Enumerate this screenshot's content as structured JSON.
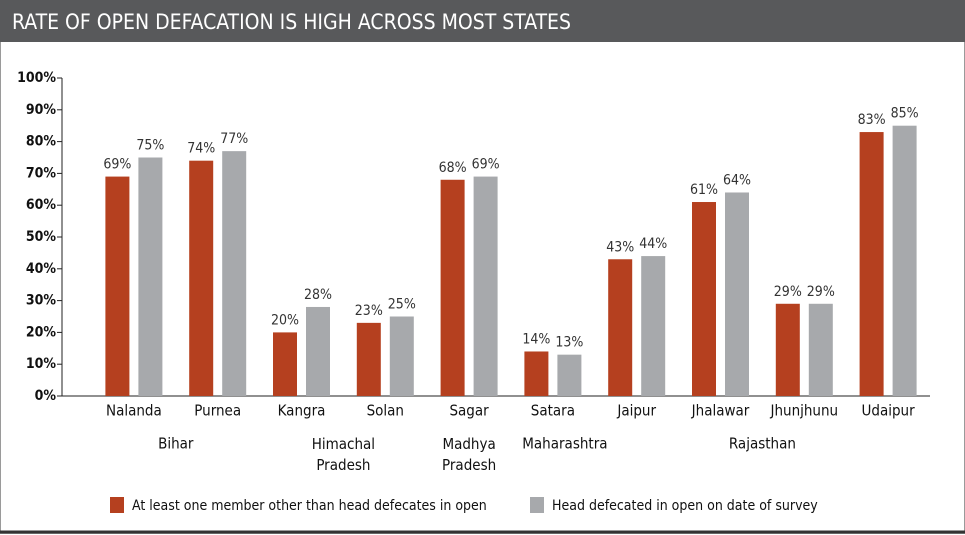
{
  "chart_data": {
    "type": "bar",
    "title": "RATE OF OPEN DEFACATION IS HIGH ACROSS MOST STATES",
    "categories": [
      "Nalanda",
      "Purnea",
      "Kangra",
      "Solan",
      "Sagar",
      "Satara",
      "Jaipur",
      "Jhalawar",
      "Jhunjhunu",
      "Udaipur"
    ],
    "groups": [
      "Bihar",
      "Himachal Pradesh",
      "Madhya Pradesh",
      "Maharashtra",
      "Rajasthan"
    ],
    "series": [
      {
        "name": "At least one member other than head defecates in open",
        "color": "#b5401f",
        "values": [
          69,
          74,
          20,
          23,
          68,
          14,
          43,
          61,
          29,
          83
        ],
        "value_labels": [
          "69%",
          "74%",
          "20%",
          "23%",
          "68%",
          "14%",
          "43%",
          "61%",
          "29%",
          "83%"
        ]
      },
      {
        "name": "Head defecated in open on date of survey",
        "color": "#a7a9ac",
        "values": [
          75,
          77,
          28,
          25,
          69,
          13,
          44,
          64,
          29,
          85
        ],
        "value_labels": [
          "75%",
          "77%",
          "28%",
          "25%",
          "69%",
          "13%",
          "44%",
          "64%",
          "29%",
          "85%"
        ]
      }
    ],
    "ylim": [
      0,
      100
    ],
    "yticks": [
      {
        "value": 0,
        "label": "0%"
      },
      {
        "value": 10,
        "label": "10%"
      },
      {
        "value": 20,
        "label": "20%"
      },
      {
        "value": 30,
        "label": "30%"
      },
      {
        "value": 40,
        "label": "40%"
      },
      {
        "value": 50,
        "label": "50%"
      },
      {
        "value": 60,
        "label": "60%"
      },
      {
        "value": 70,
        "label": "70%"
      },
      {
        "value": 80,
        "label": "80%"
      },
      {
        "value": 90,
        "label": "90%"
      },
      {
        "value": 100,
        "label": "100%"
      }
    ],
    "grid": false
  }
}
